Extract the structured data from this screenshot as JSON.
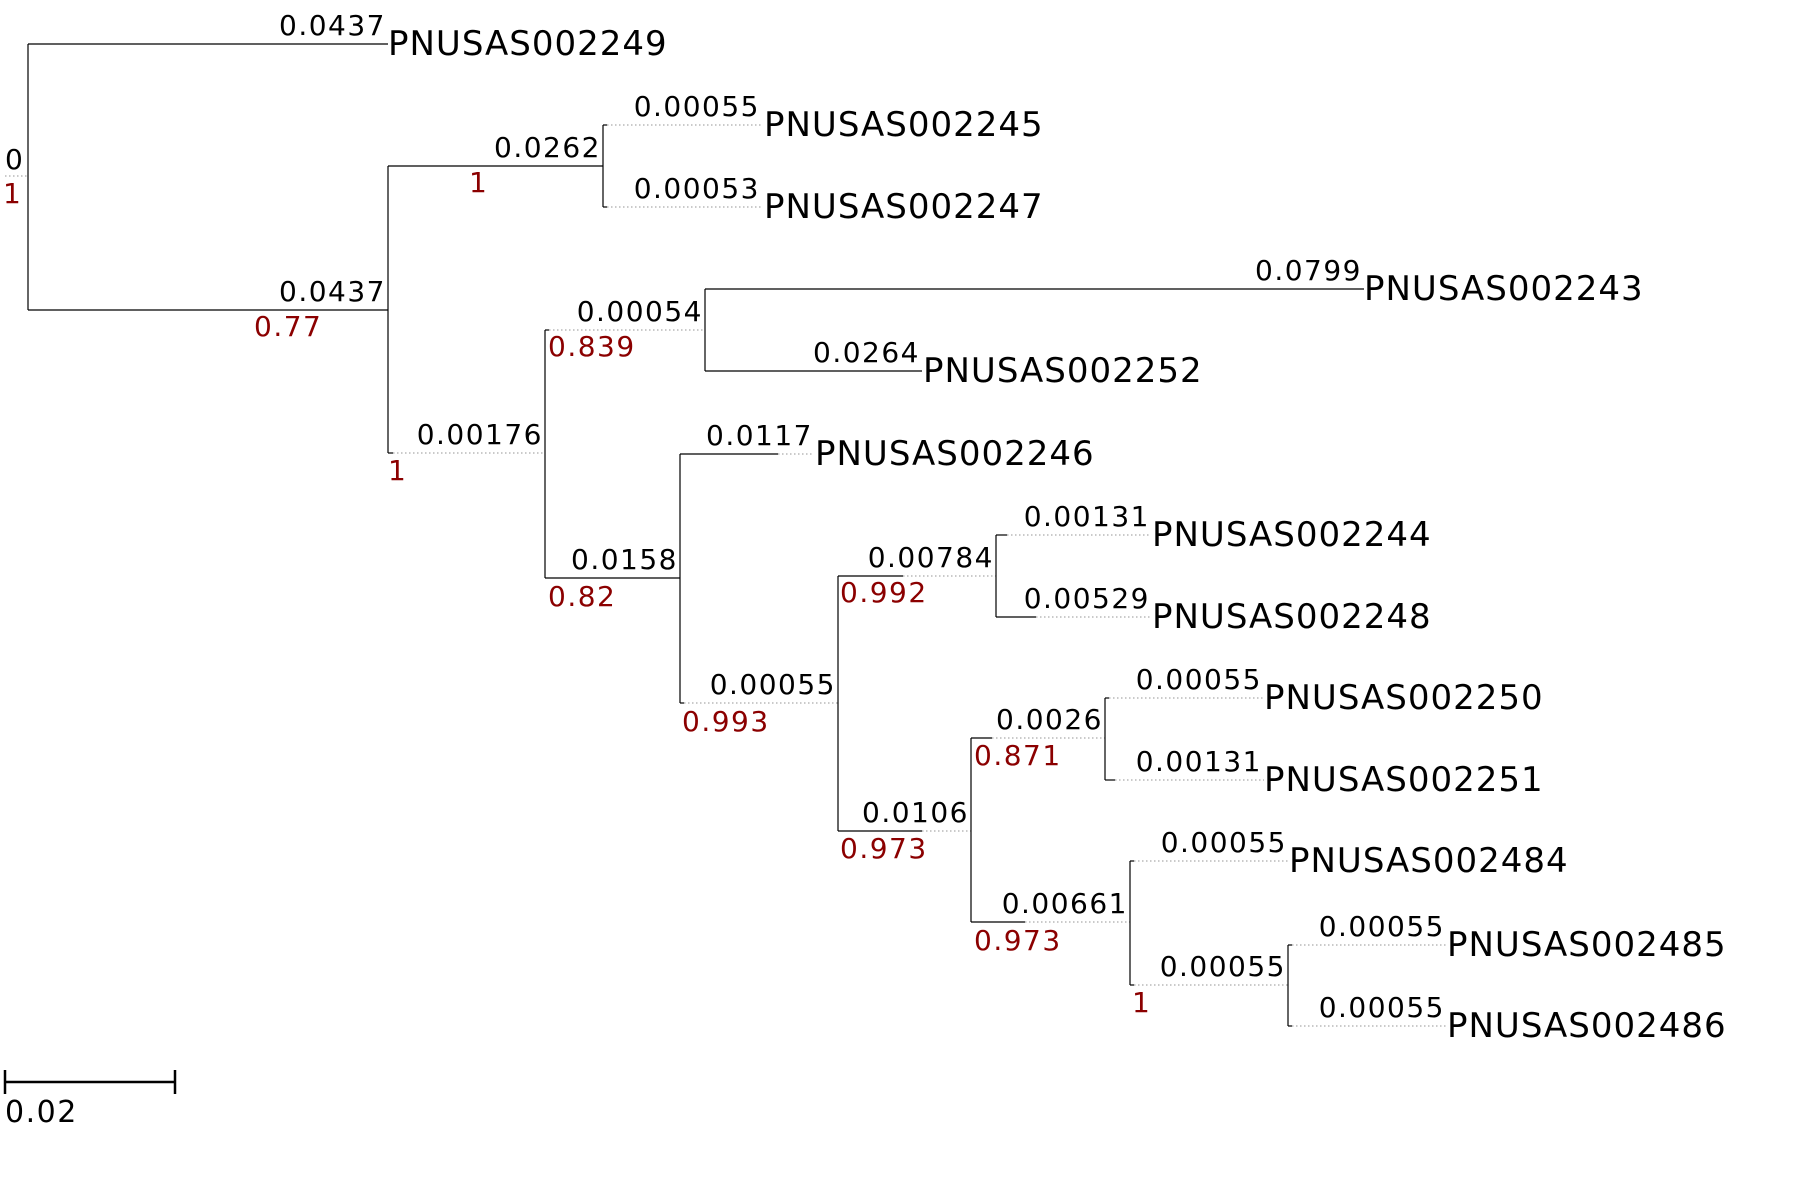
{
  "tree": {
    "root": {
      "length": "0",
      "support": "1"
    },
    "nodes": [
      {
        "id": "leaf-002249",
        "leaf": "PNUSAS002249",
        "length": "0.0437",
        "support": ""
      },
      {
        "id": "n-a",
        "leaf": "",
        "length": "0.0437",
        "support": "0.77"
      },
      {
        "id": "n-b",
        "leaf": "",
        "length": "0.0262",
        "support": "1"
      },
      {
        "id": "leaf-002245",
        "leaf": "PNUSAS002245",
        "length": "0.00055",
        "support": ""
      },
      {
        "id": "leaf-002247",
        "leaf": "PNUSAS002247",
        "length": "0.00053",
        "support": ""
      },
      {
        "id": "n-c",
        "leaf": "",
        "length": "0.00176",
        "support": "1"
      },
      {
        "id": "n-d",
        "leaf": "",
        "length": "0.00054",
        "support": "0.839"
      },
      {
        "id": "leaf-002243",
        "leaf": "PNUSAS002243",
        "length": "0.0799",
        "support": ""
      },
      {
        "id": "leaf-002252",
        "leaf": "PNUSAS002252",
        "length": "0.0264",
        "support": ""
      },
      {
        "id": "n-e",
        "leaf": "",
        "length": "0.0158",
        "support": "0.82"
      },
      {
        "id": "leaf-002246",
        "leaf": "PNUSAS002246",
        "length": "0.0117",
        "support": ""
      },
      {
        "id": "n-f",
        "leaf": "",
        "length": "0.00055",
        "support": "0.993"
      },
      {
        "id": "n-g",
        "leaf": "",
        "length": "0.00784",
        "support": "0.992"
      },
      {
        "id": "leaf-002244",
        "leaf": "PNUSAS002244",
        "length": "0.00131",
        "support": ""
      },
      {
        "id": "leaf-002248",
        "leaf": "PNUSAS002248",
        "length": "0.00529",
        "support": ""
      },
      {
        "id": "n-h",
        "leaf": "",
        "length": "0.0106",
        "support": "0.973"
      },
      {
        "id": "n-i",
        "leaf": "",
        "length": "0.0026",
        "support": "0.871"
      },
      {
        "id": "leaf-002250",
        "leaf": "PNUSAS002250",
        "length": "0.00055",
        "support": ""
      },
      {
        "id": "leaf-002251",
        "leaf": "PNUSAS002251",
        "length": "0.00131",
        "support": ""
      },
      {
        "id": "n-j",
        "leaf": "",
        "length": "0.00661",
        "support": "0.973"
      },
      {
        "id": "leaf-002484",
        "leaf": "PNUSAS002484",
        "length": "0.00055",
        "support": ""
      },
      {
        "id": "n-k",
        "leaf": "",
        "length": "0.00055",
        "support": "1"
      },
      {
        "id": "leaf-002485",
        "leaf": "PNUSAS002485",
        "length": "0.00055",
        "support": ""
      },
      {
        "id": "leaf-002486",
        "leaf": "PNUSAS002486",
        "length": "0.00055",
        "support": ""
      }
    ]
  },
  "scale_bar": {
    "label": "0.02"
  },
  "colors": {
    "branch": "#000000",
    "dotted": "#aaaaaa",
    "length_text": "#000000",
    "support_text": "#8b0000",
    "leaf_text": "#000000"
  }
}
